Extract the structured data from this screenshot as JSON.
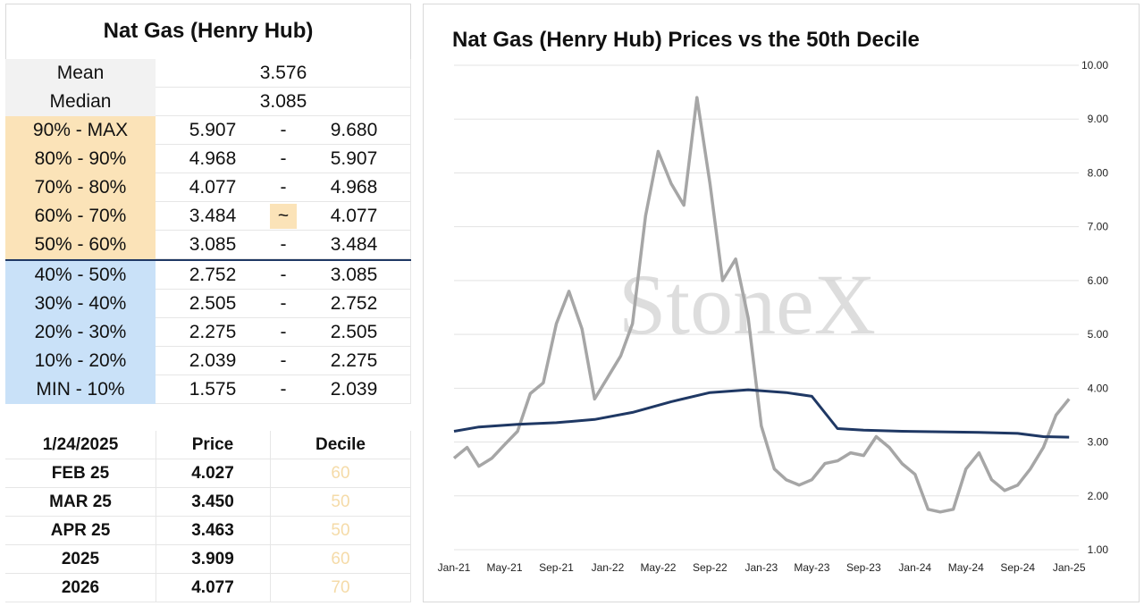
{
  "table": {
    "title": "Nat Gas (Henry Hub)",
    "mean_label": "Mean",
    "mean_value": "3.576",
    "median_label": "Median",
    "median_value": "3.085",
    "ranges": [
      {
        "label": "90% - MAX",
        "low": "5.907",
        "sep": "-",
        "high": "9.680"
      },
      {
        "label": "80% - 90%",
        "low": "4.968",
        "sep": "-",
        "high": "5.907"
      },
      {
        "label": "70% - 80%",
        "low": "4.077",
        "sep": "-",
        "high": "4.968"
      },
      {
        "label": "60% - 70%",
        "low": "3.484",
        "sep": "~",
        "high": "4.077"
      },
      {
        "label": "50% - 60%",
        "low": "3.085",
        "sep": "-",
        "high": "3.484"
      },
      {
        "label": "40% - 50%",
        "low": "2.752",
        "sep": "-",
        "high": "3.085"
      },
      {
        "label": "30% - 40%",
        "low": "2.505",
        "sep": "-",
        "high": "2.752"
      },
      {
        "label": "20% - 30%",
        "low": "2.275",
        "sep": "-",
        "high": "2.505"
      },
      {
        "label": "10% - 20%",
        "low": "2.039",
        "sep": "-",
        "high": "2.275"
      },
      {
        "label": "MIN - 10%",
        "low": "1.575",
        "sep": "-",
        "high": "2.039"
      }
    ]
  },
  "futures": {
    "header": {
      "date": "1/24/2025",
      "price": "Price",
      "decile": "Decile"
    },
    "rows": [
      {
        "contract": "FEB 25",
        "price": "4.027",
        "decile": "60"
      },
      {
        "contract": "MAR 25",
        "price": "3.450",
        "decile": "50"
      },
      {
        "contract": "APR 25",
        "price": "3.463",
        "decile": "50"
      },
      {
        "contract": "2025",
        "price": "3.909",
        "decile": "60"
      },
      {
        "contract": "2026",
        "price": "4.077",
        "decile": "70"
      }
    ]
  },
  "colors": {
    "upper_deciles": "#fbe3b8",
    "lower_deciles": "#c9e1f8",
    "price_line": "#a6a6a6",
    "decile_line": "#1f3864"
  },
  "chart_data": {
    "type": "line",
    "title": "Nat Gas (Henry Hub) Prices vs the 50th Decile",
    "watermark": "StoneX",
    "x_ticks": [
      "Jan-21",
      "May-21",
      "Sep-21",
      "Jan-22",
      "May-22",
      "Sep-22",
      "Jan-23",
      "May-23",
      "Sep-23",
      "Jan-24",
      "May-24",
      "Sep-24",
      "Jan-25"
    ],
    "y_ticks": [
      "1.00",
      "2.00",
      "3.00",
      "4.00",
      "5.00",
      "6.00",
      "7.00",
      "8.00",
      "9.00",
      "10.00"
    ],
    "ylim": [
      1,
      10
    ],
    "y_axis_side": "right",
    "grid": true,
    "series": [
      {
        "name": "",
        "x": [
          "2021-01",
          "2021-02",
          "2021-03",
          "2021-04",
          "2021-05",
          "2021-06",
          "2021-07",
          "2021-08",
          "2021-09",
          "2021-10",
          "2021-11",
          "2021-12",
          "2022-01",
          "2022-02",
          "2022-03",
          "2022-04",
          "2022-05",
          "2022-06",
          "2022-07",
          "2022-08",
          "2022-09",
          "2022-10",
          "2022-11",
          "2022-12",
          "2023-01",
          "2023-02",
          "2023-03",
          "2023-04",
          "2023-05",
          "2023-06",
          "2023-07",
          "2023-08",
          "2023-09",
          "2023-10",
          "2023-11",
          "2023-12",
          "2024-01",
          "2024-02",
          "2024-03",
          "2024-04",
          "2024-05",
          "2024-06",
          "2024-07",
          "2024-08",
          "2024-09",
          "2024-10",
          "2024-11",
          "2024-12",
          "2025-01"
        ],
        "values": [
          2.7,
          2.9,
          2.55,
          2.7,
          2.95,
          3.2,
          3.9,
          4.1,
          5.2,
          5.8,
          5.1,
          3.8,
          4.2,
          4.6,
          5.2,
          7.2,
          8.4,
          7.8,
          7.4,
          9.4,
          7.8,
          6.0,
          6.4,
          5.3,
          3.3,
          2.5,
          2.3,
          2.2,
          2.3,
          2.6,
          2.65,
          2.8,
          2.75,
          3.1,
          2.9,
          2.6,
          2.4,
          1.75,
          1.7,
          1.75,
          2.5,
          2.8,
          2.3,
          2.1,
          2.2,
          2.5,
          2.9,
          3.5,
          3.8
        ]
      },
      {
        "name": "",
        "x": [
          "2021-01",
          "2021-03",
          "2021-06",
          "2021-09",
          "2021-12",
          "2022-03",
          "2022-06",
          "2022-09",
          "2022-12",
          "2023-03",
          "2023-05",
          "2023-07",
          "2023-09",
          "2023-12",
          "2024-03",
          "2024-06",
          "2024-09",
          "2024-11",
          "2025-01"
        ],
        "values": [
          3.2,
          3.28,
          3.33,
          3.36,
          3.42,
          3.55,
          3.75,
          3.92,
          3.97,
          3.92,
          3.85,
          3.25,
          3.22,
          3.2,
          3.19,
          3.18,
          3.16,
          3.1,
          3.09
        ]
      }
    ]
  }
}
